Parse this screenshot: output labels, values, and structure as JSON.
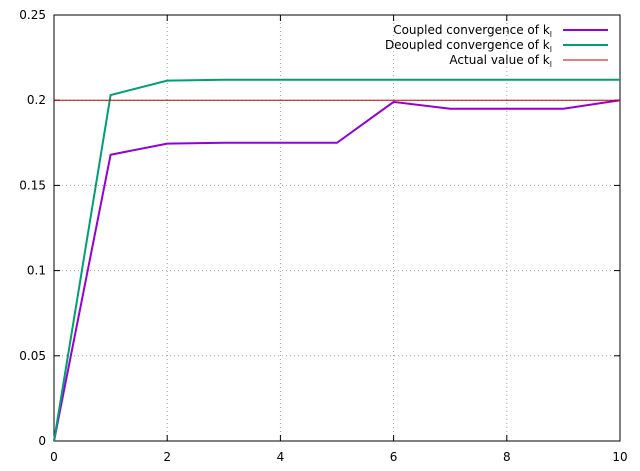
{
  "chart_data": {
    "type": "line",
    "title": "",
    "xlabel": "",
    "ylabel": "",
    "xlim": [
      0,
      10
    ],
    "ylim": [
      0,
      0.25
    ],
    "xticks": [
      "0",
      "2",
      "4",
      "6",
      "8",
      "10"
    ],
    "yticks": [
      "0",
      "0.05",
      "0.1",
      "0.15",
      "0.2",
      "0.25"
    ],
    "grid": true,
    "legend_position": "top-right",
    "series": [
      {
        "name": "Coupled convergence of k",
        "name_subscript": "l",
        "color": "#9400d3",
        "x": [
          0,
          1,
          2,
          3,
          4,
          5,
          6,
          7,
          8,
          9,
          10
        ],
        "y": [
          0,
          0.168,
          0.1745,
          0.175,
          0.175,
          0.175,
          0.199,
          0.195,
          0.195,
          0.195,
          0.2
        ]
      },
      {
        "name": "Deoupled convergence of k",
        "name_subscript": "l",
        "color": "#009e73",
        "x": [
          0,
          1,
          2,
          3,
          4,
          5,
          6,
          7,
          8,
          9,
          10
        ],
        "y": [
          0,
          0.203,
          0.2115,
          0.212,
          0.212,
          0.212,
          0.212,
          0.212,
          0.212,
          0.212,
          0.212
        ]
      },
      {
        "name": "Actual value of k",
        "name_subscript": "l",
        "color": "#cc0000",
        "x": [
          0,
          10
        ],
        "y": [
          0.2,
          0.2
        ]
      }
    ]
  }
}
